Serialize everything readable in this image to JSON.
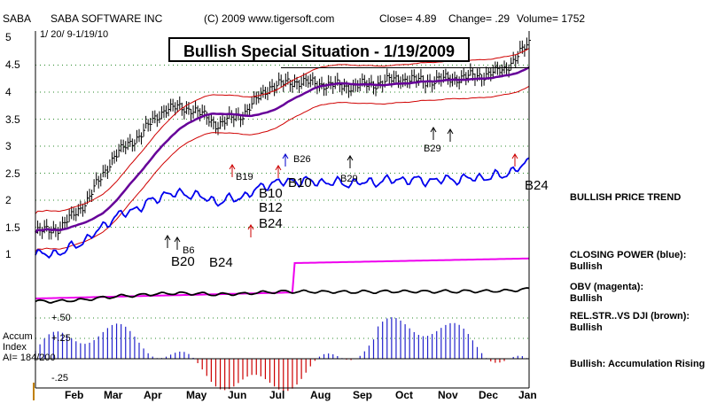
{
  "header": {
    "ticker": "SABA",
    "company": "SABA SOFTWARE INC",
    "copyright": "(C) 2009 www.tigersoft.com",
    "close": "Close=  4.89",
    "change": "Change= .29",
    "volume": "Volume= 1752",
    "date_range": "1/ 20/ 9-1/19/10"
  },
  "banner": "Bullish Special Situation - 1/19/2009",
  "chart_data": {
    "type": "line",
    "x": [
      "Feb",
      "Mar",
      "Apr",
      "May",
      "Jun",
      "Jul",
      "Aug",
      "Sep",
      "Oct",
      "Nov",
      "Dec",
      "Jan"
    ],
    "ylim": [
      1,
      5
    ],
    "yticks": [
      "5",
      "4.5",
      "4",
      "3.5",
      "3",
      "2.5",
      "2",
      "1.5",
      "1"
    ],
    "price_close": [
      1.4,
      1.5,
      2.0,
      2.8,
      3.2,
      3.7,
      3.7,
      3.4,
      3.6,
      4.1,
      4.2,
      4.15,
      4.1,
      4.15,
      4.25,
      4.2,
      4.25,
      4.3,
      4.4,
      4.89
    ],
    "accum_labels": [
      "Accum",
      "Index",
      "AI= 184/200"
    ],
    "accum_ticks": [
      "+.50",
      "+.25",
      "-.25"
    ],
    "signals": [
      "B19",
      "B26",
      "B10",
      "B10",
      "B12",
      "B24",
      "B29",
      "B29",
      "B20",
      "B24",
      "B24",
      "B6"
    ]
  },
  "right_labels": {
    "trend": "BULLISH PRICE TREND",
    "cp_title": "CLOSING POWER (blue):",
    "cp_value": "Bullish",
    "obv_title": "OBV (magenta):",
    "obv_value": "Bullish",
    "rs_title": "REL.STR..VS DJI (brown):",
    "rs_value": "Bullish",
    "accum": "Bullish: Accumulation Rising"
  },
  "colors": {
    "price": "#000000",
    "band": "#d00000",
    "ma": "#660099",
    "closing_power": "#0000ee",
    "obv": "#ee00ee",
    "rel_strength": "#000000",
    "accum": "#2222cc"
  }
}
